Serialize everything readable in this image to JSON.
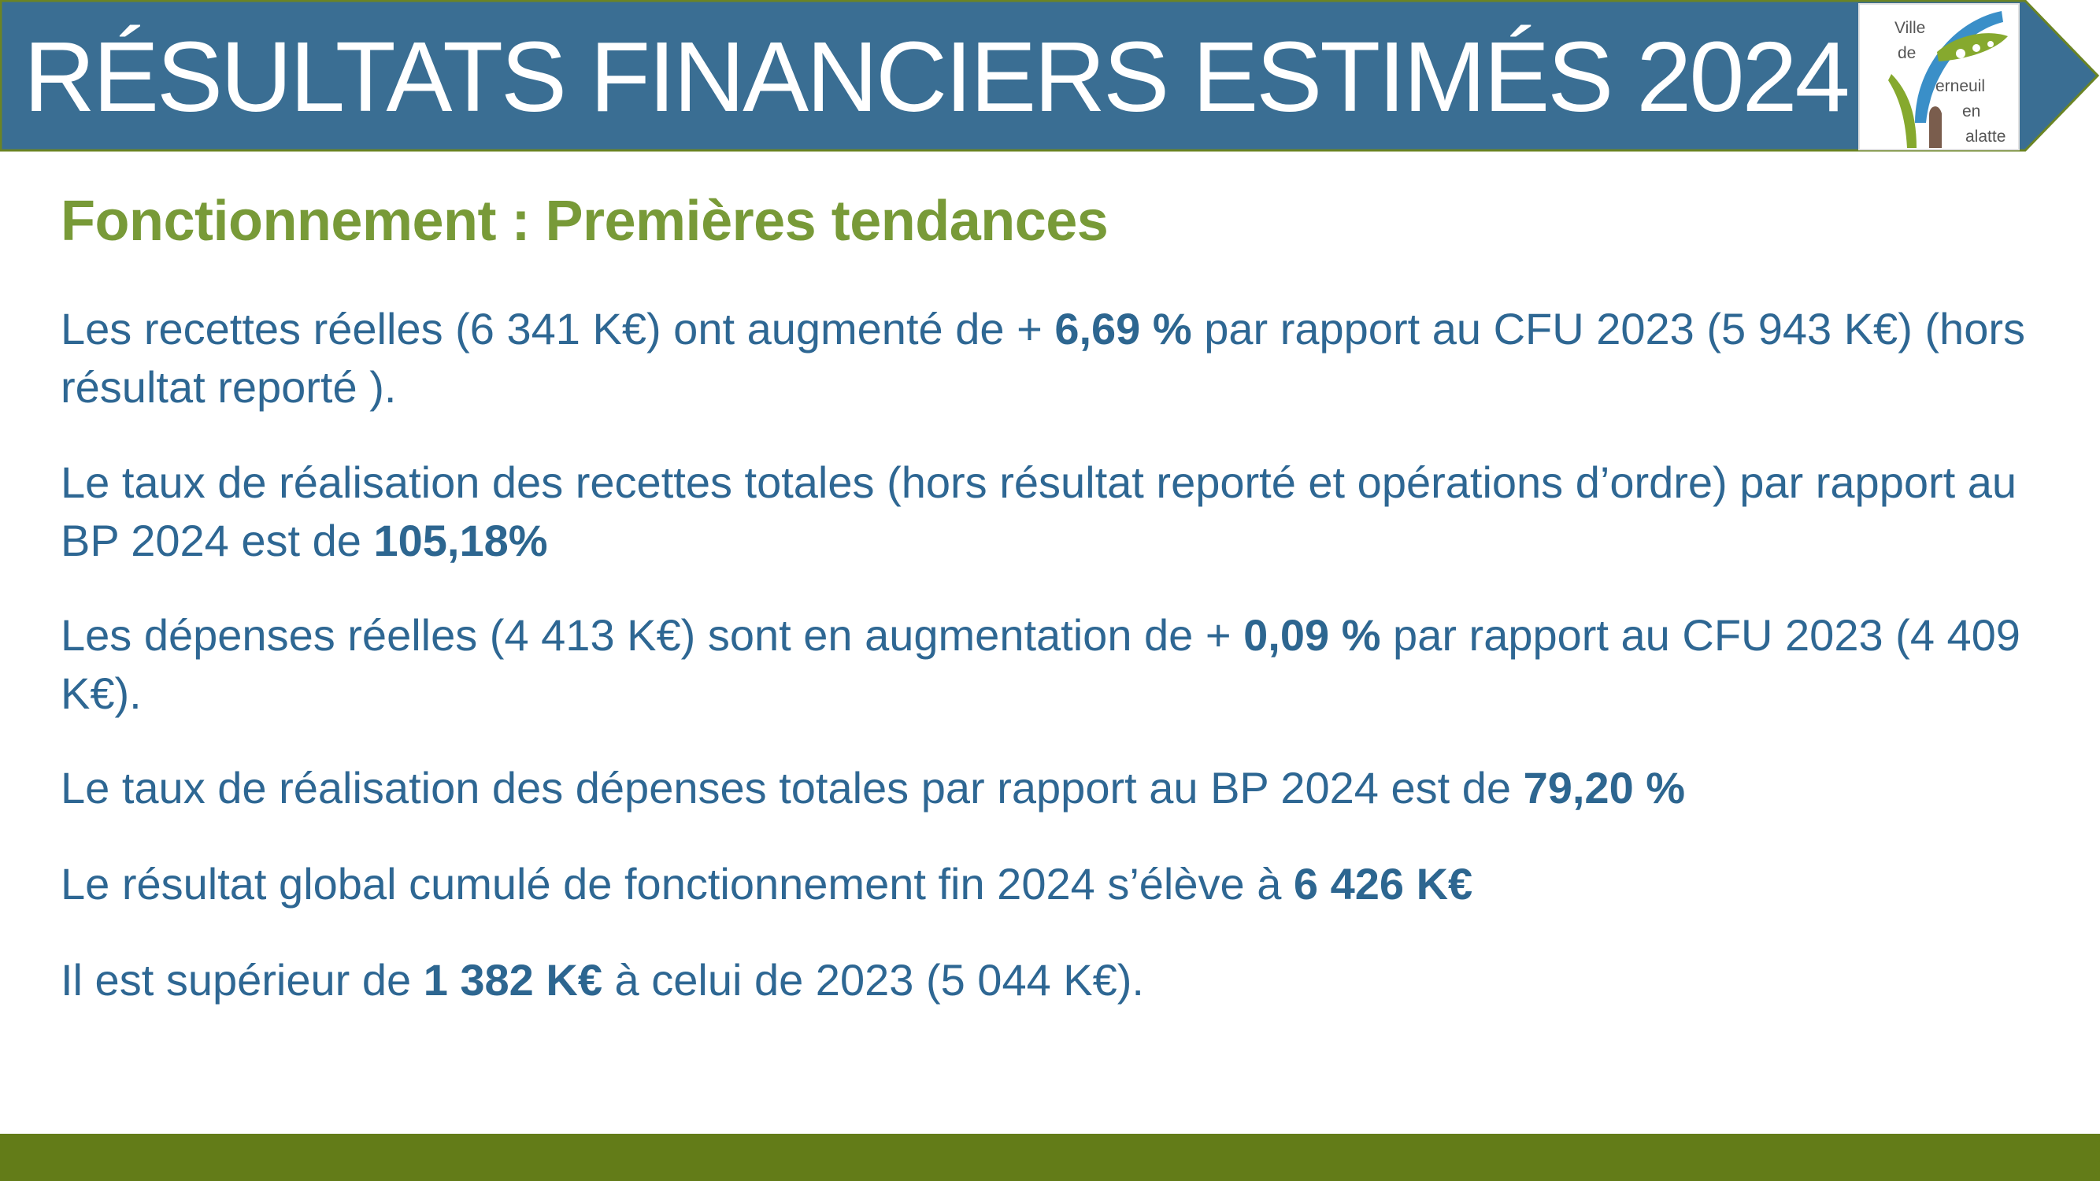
{
  "header": {
    "title": "RÉSULTATS FINANCIERS ESTIMÉS 2024",
    "banner_color": "#3a6e93",
    "banner_border_color": "#6b8424",
    "logo": {
      "icon": "town-logo-icon",
      "words": [
        "Ville",
        "de",
        "erneuil",
        "en",
        "alatte"
      ]
    }
  },
  "content": {
    "subtitle": "Fonctionnement  : Premières tendances",
    "paragraphs": [
      {
        "p1": "Les recettes réelles (6 341 K€) ont augmenté de + ",
        "b1": "6,69 %",
        "p2": " par rapport au CFU 2023 (5 943 K€) (hors résultat reporté )."
      },
      {
        "p1": "Le taux de réalisation des recettes totales (hors résultat reporté et opérations d’ordre) par rapport au BP 2024 est de ",
        "b1": "105,18%",
        "p2": ""
      },
      {
        "p1": "Les dépenses réelles (4 413 K€) sont en augmentation de + ",
        "b1": "0,09 %",
        "p2": " par rapport au CFU 2023 (4 409 K€)."
      },
      {
        "p1": "Le taux de réalisation des dépenses totales par rapport au BP 2024 est de ",
        "b1": "79,20 %",
        "p2": ""
      },
      {
        "p1": "Le résultat global cumulé de fonctionnement fin 2024 s’élève à ",
        "b1": "6 426 K€",
        "p2": ""
      },
      {
        "p1": "Il est supérieur de ",
        "b1": "1 382 K€",
        "p2": "  à celui de 2023 (5 044 K€)."
      }
    ],
    "text_color": "#2e6793",
    "subtitle_color": "#789a38"
  },
  "footer": {
    "bar_color": "#637c18"
  }
}
